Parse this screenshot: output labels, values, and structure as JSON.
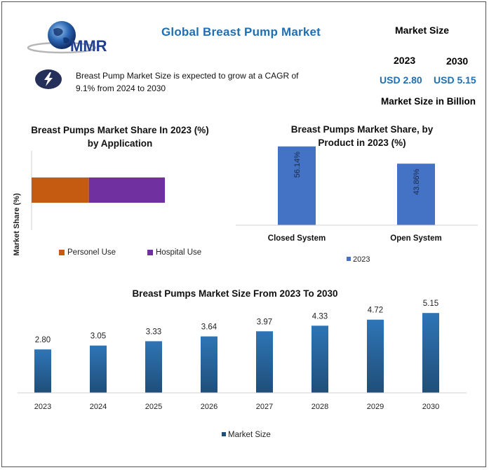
{
  "header": {
    "brand_text": "MMR",
    "title": "Global Breast Pump Market",
    "market_size_label": "Market Size",
    "year_2023": "2023",
    "year_2030": "2030",
    "value_2023": "USD 2.80",
    "value_2030": "USD 5.15",
    "unit_label": "Market Size in Billion",
    "description": "Breast Pump Market Size is expected to grow at a CAGR of 9.1% from 2024 to 2030",
    "icon": "lightning-bolt-icon"
  },
  "colors": {
    "title_blue": "#1f6fb2",
    "personal_use": "#c55a11",
    "hospital_use": "#7030a0",
    "product_bar": "#4472c4",
    "size_bar_top": "#2e75b6",
    "size_bar_bottom": "#1f4e79"
  },
  "chart_data": [
    {
      "type": "bar",
      "orientation": "horizontal-stacked",
      "title": "Breast Pumps Market Share In 2023 (%) by Application",
      "ylabel": "Market Share (%)",
      "legend_position": "bottom",
      "series": [
        {
          "name": "Personel Use",
          "values": [
            43
          ]
        },
        {
          "name": "Hospital Use",
          "values": [
            57
          ]
        }
      ]
    },
    {
      "type": "bar",
      "title": "Breast Pumps  Market Share, by Product in 2023 (%)",
      "categories": [
        "Closed System",
        "Open System"
      ],
      "series": [
        {
          "name": "2023",
          "values": [
            56.14,
            43.86
          ]
        }
      ],
      "data_labels": [
        "56.14%",
        "43.86%"
      ],
      "legend_position": "bottom"
    },
    {
      "type": "bar",
      "title": "Breast Pumps Market Size From 2023 To 2030",
      "categories": [
        "2023",
        "2024",
        "2025",
        "2026",
        "2027",
        "2028",
        "2029",
        "2030"
      ],
      "series": [
        {
          "name": "Market Size",
          "values": [
            2.8,
            3.05,
            3.33,
            3.64,
            3.97,
            4.33,
            4.72,
            5.15
          ]
        }
      ],
      "data_labels": [
        "2.80",
        "3.05",
        "3.33",
        "3.64",
        "3.97",
        "4.33",
        "4.72",
        "5.15"
      ],
      "legend_position": "bottom"
    }
  ]
}
